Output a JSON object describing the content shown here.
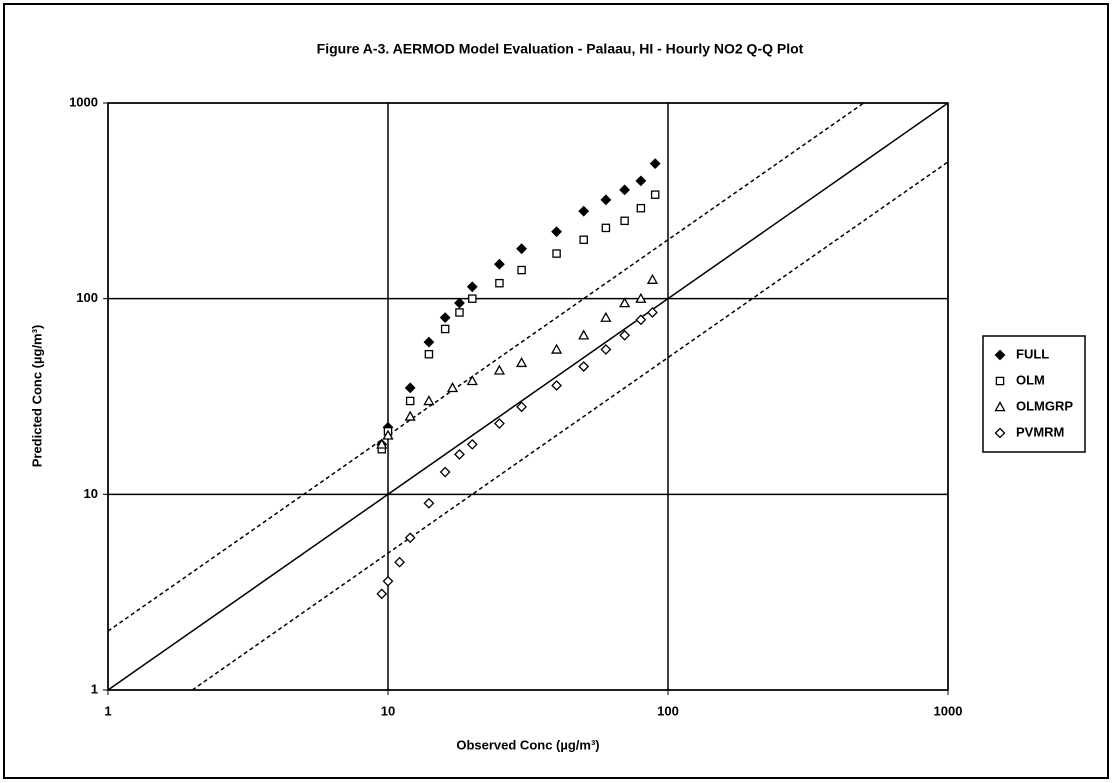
{
  "chart_data": {
    "type": "scatter",
    "title": "Figure A-3.  AERMOD Model Evaluation - Palaau, HI - Hourly NO2 Q-Q Plot",
    "xlabel": "Observed Conc (µg/m³)",
    "ylabel": "Predicted Conc (µg/m³)",
    "xscale": "log",
    "yscale": "log",
    "xlim": [
      1,
      1000
    ],
    "ylim": [
      1,
      1000
    ],
    "xticks": [
      1,
      10,
      100,
      1000
    ],
    "yticks": [
      1,
      10,
      100,
      1000
    ],
    "grid": true,
    "legend": "right",
    "color": "#000000",
    "series": [
      {
        "name": "FULL",
        "marker": "diamond-filled",
        "x": [
          9.5,
          10,
          12,
          14,
          16,
          18,
          20,
          25,
          30,
          40,
          50,
          60,
          70,
          80,
          90
        ],
        "values": [
          18,
          22,
          35,
          60,
          80,
          95,
          115,
          150,
          180,
          220,
          280,
          320,
          360,
          400,
          490
        ]
      },
      {
        "name": "OLM",
        "marker": "square-open",
        "x": [
          9.5,
          10,
          12,
          14,
          16,
          18,
          20,
          25,
          30,
          40,
          50,
          60,
          70,
          80,
          90
        ],
        "values": [
          17,
          21,
          30,
          52,
          70,
          85,
          100,
          120,
          140,
          170,
          200,
          230,
          250,
          290,
          340
        ]
      },
      {
        "name": "OLMGRP",
        "marker": "triangle-open",
        "x": [
          9.5,
          10,
          12,
          14,
          17,
          20,
          25,
          30,
          40,
          50,
          60,
          70,
          80,
          88
        ],
        "values": [
          18,
          20,
          25,
          30,
          35,
          38,
          43,
          47,
          55,
          65,
          80,
          95,
          100,
          125
        ]
      },
      {
        "name": "PVMRM",
        "marker": "diamond-open",
        "x": [
          9.5,
          10,
          11,
          12,
          14,
          16,
          18,
          20,
          25,
          30,
          40,
          50,
          60,
          70,
          80,
          88
        ],
        "values": [
          3.1,
          3.6,
          4.5,
          6,
          9,
          13,
          16,
          18,
          23,
          28,
          36,
          45,
          55,
          65,
          78,
          85
        ]
      }
    ],
    "reference_lines": [
      {
        "style": "solid",
        "x": [
          1,
          1000
        ],
        "y": [
          1,
          1000
        ]
      },
      {
        "style": "dashed",
        "x": [
          1,
          500
        ],
        "y": [
          2,
          1000
        ]
      },
      {
        "style": "dashed",
        "x": [
          2,
          1000
        ],
        "y": [
          1,
          500
        ]
      }
    ]
  }
}
